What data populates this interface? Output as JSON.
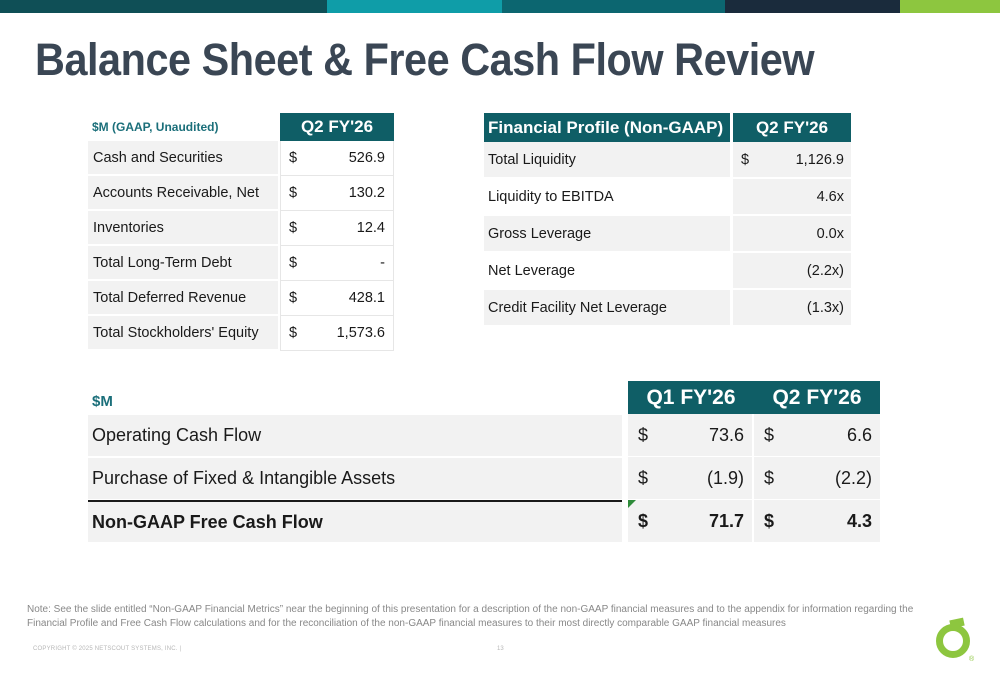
{
  "brand": {
    "bar_colors": [
      "#0f4f56",
      "#0f9da8",
      "#0c6670",
      "#1a2b3c",
      "#8dc63f"
    ],
    "accent": "#0f5e66",
    "logo_color": "#8dc63f"
  },
  "title": "Balance Sheet & Free Cash Flow Review",
  "balance_sheet": {
    "unit_label": "$M (GAAP, Unaudited)",
    "period": "Q2 FY'26",
    "rows": [
      {
        "label": "Cash and Securities",
        "currency": "$",
        "value": "526.9"
      },
      {
        "label": "Accounts Receivable, Net",
        "currency": "$",
        "value": "130.2"
      },
      {
        "label": "Inventories",
        "currency": "$",
        "value": "12.4"
      },
      {
        "label": "Total Long-Term Debt",
        "currency": "$",
        "value": "-"
      },
      {
        "label": "Total Deferred Revenue",
        "currency": "$",
        "value": "428.1"
      },
      {
        "label": "Total Stockholders' Equity",
        "currency": "$",
        "value": "1,573.6"
      }
    ]
  },
  "financial_profile": {
    "header": "Financial Profile (Non-GAAP)",
    "period": "Q2 FY'26",
    "rows": [
      {
        "label": "Total Liquidity",
        "currency": "$",
        "value": "1,126.9"
      },
      {
        "label": "Liquidity to EBITDA",
        "currency": "",
        "value": "4.6x"
      },
      {
        "label": "Gross Leverage",
        "currency": "",
        "value": "0.0x"
      },
      {
        "label": "Net Leverage",
        "currency": "",
        "value": "(2.2x)"
      },
      {
        "label": "Credit Facility Net Leverage",
        "currency": "",
        "value": "(1.3x)"
      }
    ]
  },
  "cash_flow": {
    "unit_label": "$M",
    "periods": [
      "Q1 FY'26",
      "Q2 FY'26"
    ],
    "rows": [
      {
        "label": "Operating Cash Flow",
        "c1": "$",
        "v1": "73.6",
        "c2": "$",
        "v2": "6.6"
      },
      {
        "label": "Purchase of Fixed & Intangible Assets",
        "c1": "$",
        "v1": "(1.9)",
        "c2": "$",
        "v2": "(2.2)"
      },
      {
        "label": "Non-GAAP Free Cash Flow",
        "c1": "$",
        "v1": "71.7",
        "c2": "$",
        "v2": "4.3"
      }
    ]
  },
  "note": "Note: See the slide entitled “Non-GAAP Financial Metrics” near the beginning of this presentation for a description of the non-GAAP financial measures and to the appendix for information regarding the Financial Profile and Free Cash Flow calculations and for the reconciliation of the non-GAAP financial measures to their most directly comparable GAAP financial measures",
  "footer": "COPYRIGHT © 2025 NETSCOUT SYSTEMS, INC.  |",
  "page_number": "13",
  "logo_mark": "®"
}
